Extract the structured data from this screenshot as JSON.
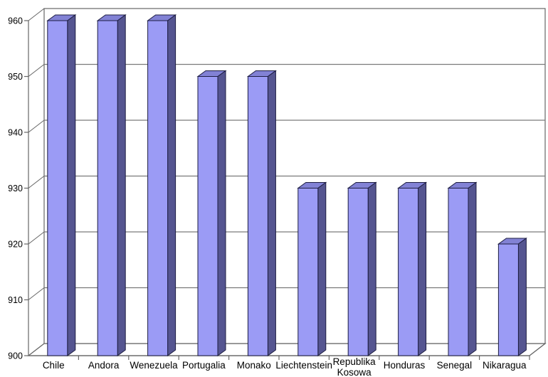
{
  "chart_data": {
    "type": "bar",
    "projection": "3d",
    "title": "",
    "xlabel": "",
    "ylabel": "",
    "categories": [
      "Chile",
      "Andora",
      "Wenezuela",
      "Portugalia",
      "Monako",
      "Liechtenstein",
      "Republika Kosowa",
      "Honduras",
      "Senegal",
      "Nikaragua"
    ],
    "values": [
      960,
      960,
      960,
      950,
      950,
      930,
      930,
      930,
      930,
      920
    ],
    "ylim": [
      900,
      960
    ],
    "yticks": [
      900,
      910,
      920,
      930,
      940,
      950,
      960
    ],
    "grid": true,
    "legend": false,
    "colors": {
      "bar_front": "#9B9BF5",
      "bar_top": "#8282D5",
      "bar_side": "#555590",
      "bar_outline": "#1D1D42",
      "gridline": "#7A7A7A",
      "frame": "#666666",
      "background": "#FFFFFF",
      "text": "#000000"
    }
  }
}
